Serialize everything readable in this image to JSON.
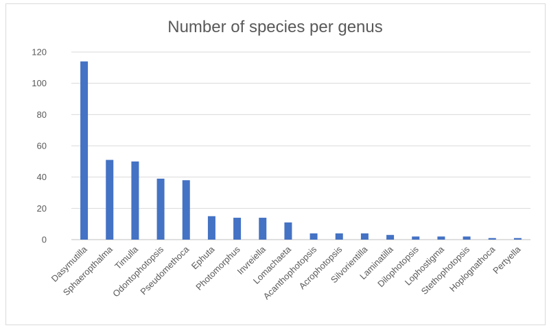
{
  "chart_data": {
    "type": "bar",
    "title": "Number of species per genus",
    "xlabel": "",
    "ylabel": "",
    "ylim": [
      0,
      120
    ],
    "yticks": [
      0,
      20,
      40,
      60,
      80,
      100,
      120
    ],
    "grid": true,
    "legend": "none",
    "bar_color": "#4472c4",
    "categories": [
      "Dasymutilla",
      "Sphaeropthalma",
      "Timulla",
      "Odontophotopsis",
      "Pseudomethoca",
      "Ephuta",
      "Photomorphus",
      "Invreiella",
      "Lomachaeta",
      "Acanthophotopsis",
      "Acrophotopsis",
      "Silvorientilla",
      "Laminatilla",
      "Dilophotopsis",
      "Lophostigma",
      "Stethophotopsis",
      "Hoplognathoca",
      "Pertyella"
    ],
    "values": [
      114,
      51,
      50,
      39,
      38,
      15,
      14,
      14,
      11,
      4,
      4,
      4,
      3,
      2,
      2,
      2,
      1,
      1
    ]
  }
}
